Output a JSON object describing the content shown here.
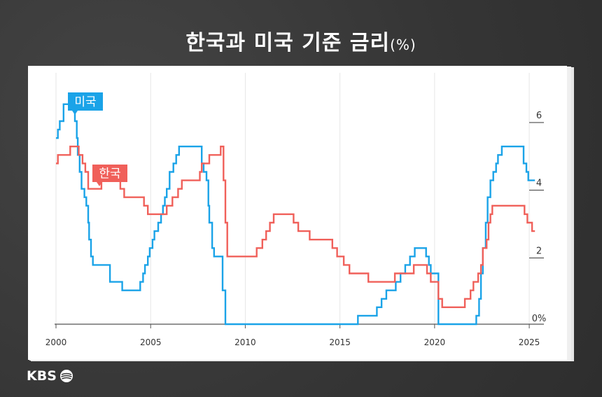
{
  "title": "한국과 미국 기준 금리",
  "title_unit": "(%)",
  "logo": "KBS",
  "colors": {
    "usa": "#1aa3e8",
    "korea": "#f0605a",
    "axis": "#555555",
    "grid": "#e6e6e6"
  },
  "chart_data": {
    "type": "line",
    "title": "한국과 미국 기준 금리(%)",
    "xlabel": "",
    "ylabel": "",
    "xlim": [
      2000,
      2025.7
    ],
    "ylim": [
      0,
      6.6
    ],
    "grid": true,
    "x_ticks": [
      "2000",
      "2005",
      "2010",
      "2015",
      "2020",
      "2025"
    ],
    "y_ticks": [
      "6",
      "4",
      "2",
      "0%"
    ],
    "legend": "inline labels",
    "series": [
      {
        "name": "미국",
        "color": "#1aa3e8",
        "points": [
          [
            2000.0,
            5.5
          ],
          [
            2000.1,
            5.75
          ],
          [
            2000.2,
            6.0
          ],
          [
            2000.4,
            6.5
          ],
          [
            2001.0,
            6.0
          ],
          [
            2001.1,
            5.5
          ],
          [
            2001.15,
            5.0
          ],
          [
            2001.25,
            4.5
          ],
          [
            2001.35,
            4.0
          ],
          [
            2001.5,
            3.75
          ],
          [
            2001.6,
            3.5
          ],
          [
            2001.7,
            3.0
          ],
          [
            2001.75,
            2.5
          ],
          [
            2001.85,
            2.0
          ],
          [
            2001.95,
            1.75
          ],
          [
            2002.85,
            1.25
          ],
          [
            2003.5,
            1.0
          ],
          [
            2004.45,
            1.25
          ],
          [
            2004.6,
            1.5
          ],
          [
            2004.7,
            1.75
          ],
          [
            2004.85,
            2.0
          ],
          [
            2004.95,
            2.25
          ],
          [
            2005.1,
            2.5
          ],
          [
            2005.2,
            2.75
          ],
          [
            2005.4,
            3.0
          ],
          [
            2005.55,
            3.25
          ],
          [
            2005.65,
            3.5
          ],
          [
            2005.75,
            3.75
          ],
          [
            2005.85,
            4.0
          ],
          [
            2006.0,
            4.5
          ],
          [
            2006.2,
            4.75
          ],
          [
            2006.35,
            5.0
          ],
          [
            2006.5,
            5.25
          ],
          [
            2007.7,
            4.75
          ],
          [
            2007.8,
            4.5
          ],
          [
            2007.95,
            4.25
          ],
          [
            2008.05,
            3.5
          ],
          [
            2008.1,
            3.0
          ],
          [
            2008.25,
            2.25
          ],
          [
            2008.35,
            2.0
          ],
          [
            2008.8,
            1.0
          ],
          [
            2008.95,
            0.0
          ],
          [
            2015.95,
            0.25
          ],
          [
            2016.95,
            0.5
          ],
          [
            2017.2,
            0.75
          ],
          [
            2017.45,
            1.0
          ],
          [
            2017.95,
            1.25
          ],
          [
            2018.2,
            1.5
          ],
          [
            2018.45,
            1.75
          ],
          [
            2018.7,
            2.0
          ],
          [
            2018.95,
            2.25
          ],
          [
            2019.55,
            2.0
          ],
          [
            2019.7,
            1.75
          ],
          [
            2019.8,
            1.5
          ],
          [
            2020.2,
            0.0
          ],
          [
            2022.2,
            0.25
          ],
          [
            2022.35,
            0.75
          ],
          [
            2022.45,
            1.5
          ],
          [
            2022.55,
            2.25
          ],
          [
            2022.7,
            3.0
          ],
          [
            2022.8,
            3.75
          ],
          [
            2022.95,
            4.25
          ],
          [
            2023.1,
            4.5
          ],
          [
            2023.25,
            4.75
          ],
          [
            2023.35,
            5.0
          ],
          [
            2023.55,
            5.25
          ],
          [
            2024.7,
            4.75
          ],
          [
            2024.85,
            4.5
          ],
          [
            2024.95,
            4.25
          ],
          [
            2025.3,
            4.25
          ]
        ]
      },
      {
        "name": "한국",
        "color": "#f0605a",
        "points": [
          [
            2000.0,
            4.75
          ],
          [
            2000.1,
            5.0
          ],
          [
            2000.75,
            5.25
          ],
          [
            2001.2,
            5.0
          ],
          [
            2001.4,
            4.75
          ],
          [
            2001.55,
            4.5
          ],
          [
            2001.7,
            4.0
          ],
          [
            2002.4,
            4.25
          ],
          [
            2003.4,
            4.0
          ],
          [
            2003.6,
            3.75
          ],
          [
            2004.65,
            3.5
          ],
          [
            2004.85,
            3.25
          ],
          [
            2005.85,
            3.5
          ],
          [
            2006.15,
            3.75
          ],
          [
            2006.45,
            4.0
          ],
          [
            2006.65,
            4.25
          ],
          [
            2007.6,
            4.5
          ],
          [
            2007.7,
            4.75
          ],
          [
            2008.1,
            5.0
          ],
          [
            2008.7,
            5.25
          ],
          [
            2008.85,
            4.25
          ],
          [
            2008.95,
            3.0
          ],
          [
            2009.05,
            2.0
          ],
          [
            2010.6,
            2.25
          ],
          [
            2010.9,
            2.5
          ],
          [
            2011.1,
            2.75
          ],
          [
            2011.3,
            3.0
          ],
          [
            2011.5,
            3.25
          ],
          [
            2012.55,
            3.0
          ],
          [
            2012.8,
            2.75
          ],
          [
            2013.4,
            2.5
          ],
          [
            2014.6,
            2.25
          ],
          [
            2014.85,
            2.0
          ],
          [
            2015.2,
            1.75
          ],
          [
            2015.5,
            1.5
          ],
          [
            2016.5,
            1.25
          ],
          [
            2017.9,
            1.5
          ],
          [
            2018.9,
            1.75
          ],
          [
            2019.6,
            1.5
          ],
          [
            2019.8,
            1.25
          ],
          [
            2020.2,
            0.75
          ],
          [
            2020.4,
            0.5
          ],
          [
            2021.6,
            0.75
          ],
          [
            2021.9,
            1.0
          ],
          [
            2022.05,
            1.25
          ],
          [
            2022.3,
            1.5
          ],
          [
            2022.45,
            1.75
          ],
          [
            2022.55,
            2.25
          ],
          [
            2022.75,
            2.5
          ],
          [
            2022.85,
            3.0
          ],
          [
            2022.95,
            3.25
          ],
          [
            2023.05,
            3.5
          ],
          [
            2024.75,
            3.25
          ],
          [
            2024.9,
            3.0
          ],
          [
            2025.15,
            2.75
          ],
          [
            2025.3,
            2.75
          ]
        ]
      }
    ]
  }
}
